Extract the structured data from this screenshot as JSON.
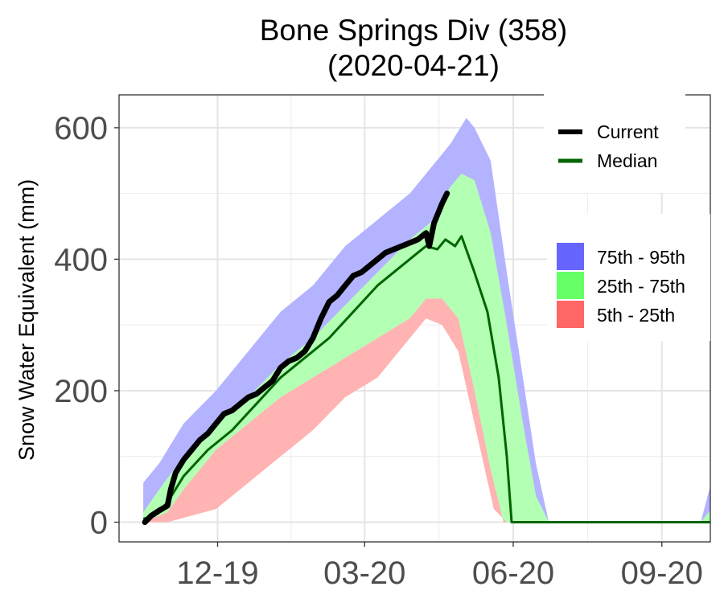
{
  "chart_data": {
    "type": "area",
    "title_line1": "Bone Springs Div (358)",
    "title_line2": "(2020-04-21)",
    "ylabel": "Snow Water Equivalent (mm)",
    "xlabel": "",
    "ylim": [
      -30,
      650
    ],
    "y_ticks": [
      0,
      200,
      400,
      600
    ],
    "y_tick_labels": [
      "0",
      "200",
      "400",
      "600"
    ],
    "x_domain_days": [
      0,
      366
    ],
    "x_ticks": [
      {
        "day": 61,
        "label": "12-19"
      },
      {
        "day": 152,
        "label": "03-20"
      },
      {
        "day": 244,
        "label": "06-20"
      },
      {
        "day": 336,
        "label": "09-20"
      }
    ],
    "x_unit_note": "days since 2019-10-01",
    "grid": true,
    "colors": {
      "band_75_95": "#b3b3ff",
      "band_25_75": "#b3ffb3",
      "band_5_25": "#ffb3b3",
      "current": "#000000",
      "median": "#006400",
      "legend_75_95": "#6666ff",
      "legend_25_75": "#66ff66",
      "legend_5_25": "#ff6666"
    },
    "legend": {
      "lines": [
        {
          "label": "Current",
          "color": "#000000"
        },
        {
          "label": "Median",
          "color": "#006400"
        }
      ],
      "bands": [
        {
          "label": "75th - 95th",
          "color": "#6666ff"
        },
        {
          "label": "25th - 75th",
          "color": "#66ff66"
        },
        {
          "label": "5th - 25th",
          "color": "#ff6666"
        }
      ],
      "placement": "top-right"
    },
    "series": [
      {
        "name": "p95",
        "x": [
          15,
          25,
          40,
          60,
          80,
          100,
          120,
          140,
          160,
          180,
          195,
          205,
          215,
          220,
          230,
          240,
          250,
          258,
          266,
          270,
          360,
          366
        ],
        "y": [
          60,
          90,
          150,
          200,
          260,
          320,
          360,
          420,
          460,
          500,
          545,
          575,
          615,
          600,
          550,
          380,
          220,
          90,
          0,
          0,
          0,
          55
        ]
      },
      {
        "name": "p75",
        "x": [
          15,
          25,
          40,
          60,
          80,
          100,
          120,
          140,
          160,
          180,
          195,
          205,
          212,
          220,
          230,
          240,
          250,
          258,
          266,
          270,
          360,
          366
        ],
        "y": [
          15,
          50,
          100,
          150,
          190,
          240,
          280,
          330,
          380,
          430,
          460,
          510,
          530,
          520,
          440,
          300,
          150,
          40,
          0,
          0,
          0,
          18
        ]
      },
      {
        "name": "p25",
        "x": [
          15,
          20,
          30,
          40,
          60,
          80,
          100,
          120,
          140,
          160,
          180,
          190,
          200,
          210,
          220,
          230,
          238,
          240,
          250,
          360,
          366
        ],
        "y": [
          0,
          5,
          15,
          50,
          110,
          150,
          190,
          220,
          250,
          280,
          310,
          340,
          340,
          310,
          200,
          80,
          0,
          0,
          0,
          0,
          0
        ]
      },
      {
        "name": "p5",
        "x": [
          15,
          30,
          60,
          80,
          100,
          120,
          140,
          160,
          180,
          190,
          200,
          210,
          220,
          232,
          240,
          366
        ],
        "y": [
          0,
          0,
          20,
          60,
          100,
          140,
          190,
          220,
          280,
          310,
          300,
          260,
          150,
          20,
          0,
          0
        ]
      },
      {
        "name": "Median",
        "x": [
          15,
          22,
          30,
          40,
          55,
          70,
          85,
          100,
          115,
          130,
          145,
          160,
          175,
          185,
          190,
          197,
          202,
          208,
          212,
          220,
          228,
          235,
          240,
          243,
          250,
          366
        ],
        "y": [
          5,
          10,
          30,
          70,
          110,
          140,
          180,
          220,
          250,
          280,
          320,
          360,
          390,
          410,
          420,
          415,
          430,
          420,
          435,
          380,
          320,
          220,
          100,
          0,
          0,
          0
        ]
      },
      {
        "name": "Current",
        "x": [
          16,
          20,
          25,
          30,
          32,
          35,
          40,
          45,
          50,
          55,
          60,
          65,
          70,
          75,
          80,
          85,
          90,
          95,
          100,
          105,
          110,
          115,
          120,
          125,
          130,
          135,
          140,
          145,
          150,
          155,
          160,
          165,
          170,
          175,
          180,
          185,
          190,
          192,
          195,
          200,
          203
        ],
        "y": [
          0,
          10,
          18,
          25,
          50,
          75,
          95,
          110,
          125,
          135,
          150,
          165,
          170,
          180,
          190,
          195,
          205,
          215,
          235,
          245,
          250,
          260,
          280,
          310,
          335,
          345,
          360,
          375,
          380,
          390,
          400,
          410,
          415,
          420,
          425,
          430,
          440,
          420,
          455,
          485,
          500
        ]
      }
    ]
  }
}
